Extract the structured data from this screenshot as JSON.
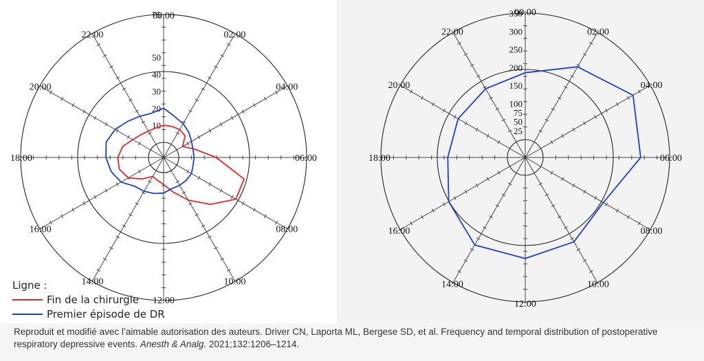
{
  "chart_data": [
    {
      "type": "radar",
      "axis_labels": [
        "00:00",
        "02:00",
        "04:00",
        "06:00",
        "08:00",
        "10:00",
        "12:00",
        "14:00",
        "16:00",
        "18:00",
        "20:00",
        "22:00"
      ],
      "rlim": [
        0,
        75
      ],
      "radial_ticks": [
        10,
        20,
        30,
        40,
        50,
        75
      ],
      "series": [
        {
          "name": "Fin de la chirurgie",
          "color": "#e8262b",
          "values": [
            10,
            10,
            10,
            9,
            4,
            10,
            22,
            40,
            40,
            30,
            20,
            12,
            7,
            5,
            4,
            9,
            15,
            18,
            18,
            16,
            12,
            10,
            9,
            9
          ]
        },
        {
          "name": "Premier épisode de DR",
          "color": "#1f3fcf",
          "values": [
            20,
            16,
            14,
            12,
            10,
            9,
            9,
            9,
            10,
            10,
            10,
            10,
            12,
            13,
            14,
            15,
            20,
            23,
            25,
            26,
            24,
            21,
            19,
            18
          ]
        }
      ]
    },
    {
      "type": "radar",
      "axis_labels": [
        "00:00",
        "02:00",
        "04:00",
        "06:00",
        "08:00",
        "10:00",
        "12:00",
        "14:00",
        "16:00",
        "18:00",
        "20:00",
        "22:00"
      ],
      "rlim": [
        0,
        350
      ],
      "radial_ticks": [
        25,
        50,
        75,
        100,
        150,
        200,
        250,
        300,
        350
      ],
      "series": [
        {
          "name": "Premier épisode de DR",
          "color": "#1f3fcf",
          "values": [
            185,
            240,
            295,
            270,
            200,
            220,
            230,
            230,
            195,
            165,
            165,
            170
          ]
        }
      ]
    }
  ],
  "legend": {
    "title": "Ligne :",
    "items": [
      {
        "label": "Fin de la chirurgie",
        "color": "#e8262b"
      },
      {
        "label": "Premier épisode de DR",
        "color": "#1f3fcf"
      }
    ]
  },
  "caption": {
    "text": "Reproduit et modifié avec l’aimable autorisation des auteurs. Driver CN, Laporta ML, Bergese SD, et al. Frequency and temporal distribution of postoperative respiratory depressive events. ",
    "journal": "Anesth & Analg.",
    "citation": " 2021;132:1206–1214."
  }
}
